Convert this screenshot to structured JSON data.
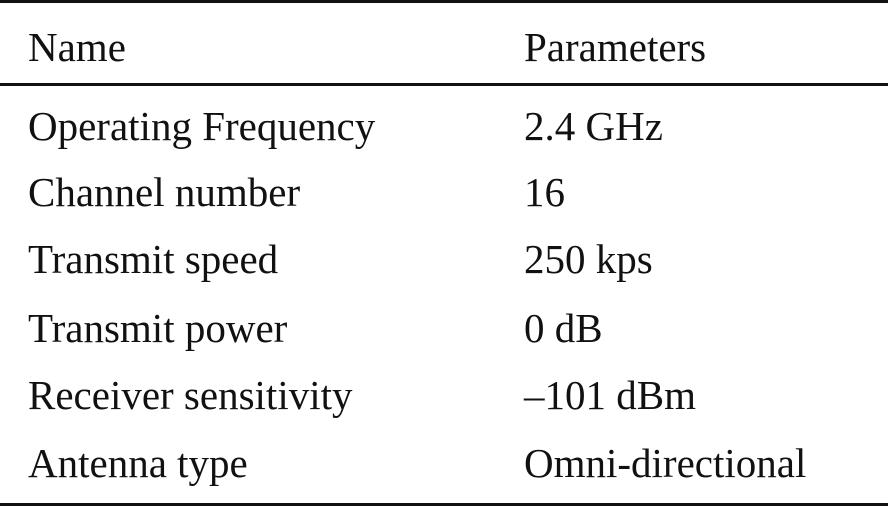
{
  "table": {
    "headers": {
      "name": "Name",
      "parameters": "Parameters"
    },
    "rows": [
      {
        "name": "Operating Frequency",
        "parameter": "2.4 GHz"
      },
      {
        "name": "Channel number",
        "parameter": "16"
      },
      {
        "name": "Transmit speed",
        "parameter": "250 kps"
      },
      {
        "name": "Transmit power",
        "parameter": "0 dB"
      },
      {
        "name": "Receiver sensitivity",
        "parameter": "–101 dBm"
      },
      {
        "name": "Antenna type",
        "parameter": "Omni-directional"
      }
    ]
  }
}
